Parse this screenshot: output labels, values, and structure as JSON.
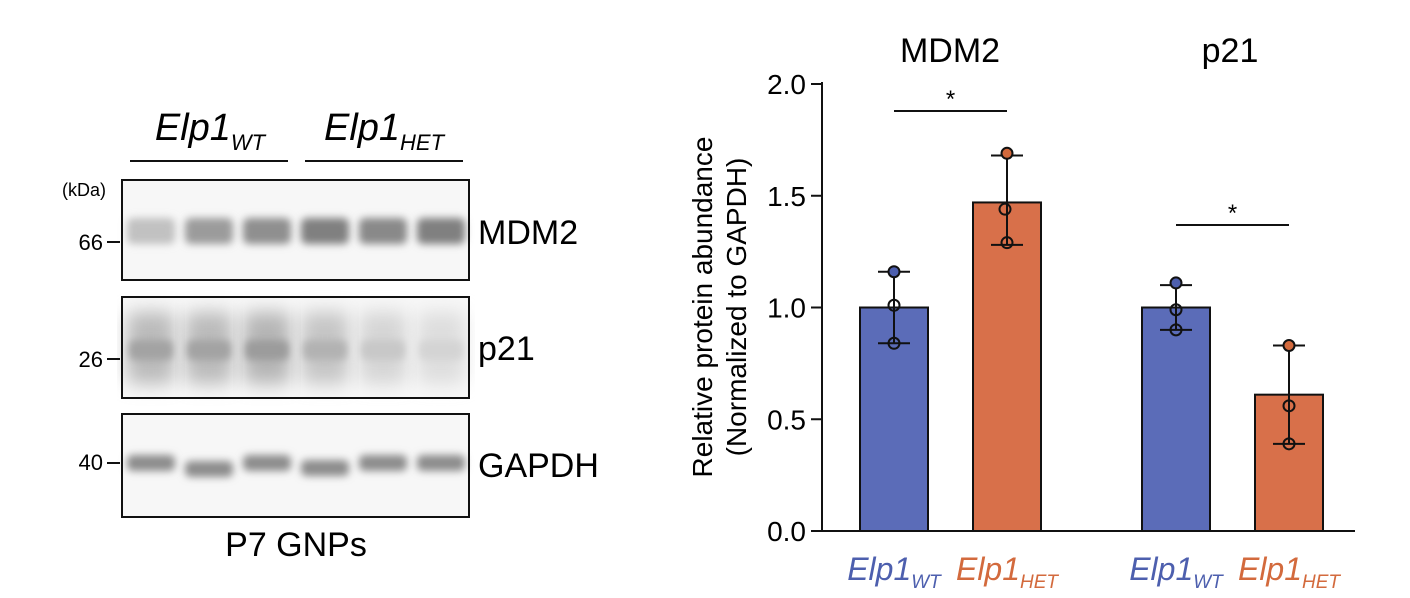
{
  "colors": {
    "wt": "#4d5fae",
    "het": "#d36a3d",
    "wt_bar": "#5b6cb8",
    "het_bar": "#d8704a",
    "ink": "#111111"
  },
  "blot": {
    "group_labels": [
      {
        "main": "Elp1",
        "sub": "WT",
        "color": "#4d5fae"
      },
      {
        "main": "Elp1",
        "sub": "HET",
        "color": "#d36a3d"
      }
    ],
    "unit_label": "(kDa)",
    "panels": [
      {
        "protein": "MDM2",
        "kda": "66",
        "band_intensity": [
          0.35,
          0.6,
          0.68,
          0.78,
          0.72,
          0.78
        ]
      },
      {
        "protein": "p21",
        "kda": "26",
        "band_intensity": [
          0.55,
          0.55,
          0.6,
          0.45,
          0.3,
          0.22
        ]
      },
      {
        "protein": "GAPDH",
        "kda": "40",
        "band_intensity": [
          0.7,
          0.7,
          0.7,
          0.7,
          0.7,
          0.7
        ]
      }
    ],
    "caption": "P7 GNPs"
  },
  "chart_data": {
    "type": "bar",
    "groups": [
      "MDM2",
      "p21"
    ],
    "ylabel_line1": "Relative protein abundance",
    "ylabel_line2": "(Normalized to GAPDH)",
    "ylim": [
      0,
      2.0
    ],
    "yticks": [
      "0.0",
      "0.5",
      "1.0",
      "1.5",
      "2.0"
    ],
    "bars": [
      {
        "group": "MDM2",
        "label_main": "Elp1",
        "label_sub": "WT",
        "color_key": "wt",
        "value": 1.0,
        "err_low": 0.84,
        "err_high": 1.16,
        "points": [
          1.16,
          1.01,
          0.84
        ]
      },
      {
        "group": "MDM2",
        "label_main": "Elp1",
        "label_sub": "HET",
        "color_key": "het",
        "value": 1.47,
        "err_low": 1.28,
        "err_high": 1.68,
        "points": [
          1.69,
          1.44,
          1.29
        ]
      },
      {
        "group": "p21",
        "label_main": "Elp1",
        "label_sub": "WT",
        "color_key": "wt",
        "value": 1.0,
        "err_low": 0.9,
        "err_high": 1.1,
        "points": [
          1.11,
          0.99,
          0.9
        ]
      },
      {
        "group": "p21",
        "label_main": "Elp1",
        "label_sub": "HET",
        "color_key": "het",
        "value": 0.61,
        "err_low": 0.39,
        "err_high": 0.83,
        "points": [
          0.83,
          0.56,
          0.39
        ]
      }
    ],
    "significance": [
      {
        "group": "MDM2",
        "mark": "*"
      },
      {
        "group": "p21",
        "mark": "*"
      }
    ]
  }
}
